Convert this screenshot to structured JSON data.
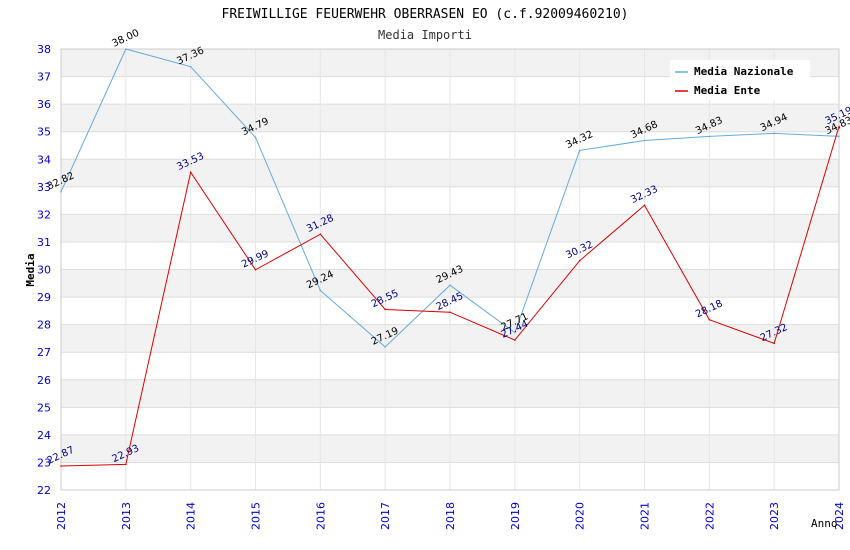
{
  "chart_data": {
    "type": "line",
    "title": "FREIWILLIGE FEUERWEHR OBERRASEN EO (c.f.92009460210)",
    "subtitle": "Media Importi",
    "xlabel": "Anno",
    "ylabel": "Media",
    "ylim": [
      22,
      38
    ],
    "yticks": [
      "22",
      "23",
      "24",
      "25",
      "26",
      "27",
      "28",
      "29",
      "30",
      "31",
      "32",
      "33",
      "34",
      "35",
      "36",
      "37",
      "38"
    ],
    "categories": [
      "2012",
      "2013",
      "2014",
      "2015",
      "2016",
      "2017",
      "2018",
      "2019",
      "2020",
      "2021",
      "2022",
      "2023",
      "2024"
    ],
    "grid": true,
    "legend_position": "top-right",
    "series": [
      {
        "name": "Media Nazionale",
        "color": "#66aadd",
        "values": [
          32.82,
          38.0,
          37.36,
          34.79,
          29.24,
          27.19,
          29.43,
          27.71,
          34.32,
          34.68,
          34.83,
          34.94,
          34.83
        ],
        "labels": [
          "32.82",
          "38.00",
          "37.36",
          "34.79",
          "29.24",
          "27.19",
          "29.43",
          "27.71",
          "34.32",
          "34.68",
          "34.83",
          "34.94",
          "34.83"
        ]
      },
      {
        "name": "Media Ente",
        "color": "#dd0000",
        "values": [
          22.87,
          22.93,
          33.53,
          29.99,
          31.28,
          28.55,
          28.45,
          27.44,
          30.32,
          32.33,
          28.18,
          27.32,
          35.19
        ],
        "labels": [
          "22.87",
          "22.93",
          "33.53",
          "29.99",
          "31.28",
          "28.55",
          "28.45",
          "27.44",
          "30.32",
          "32.33",
          "28.18",
          "27.32",
          "35.19"
        ]
      }
    ]
  }
}
